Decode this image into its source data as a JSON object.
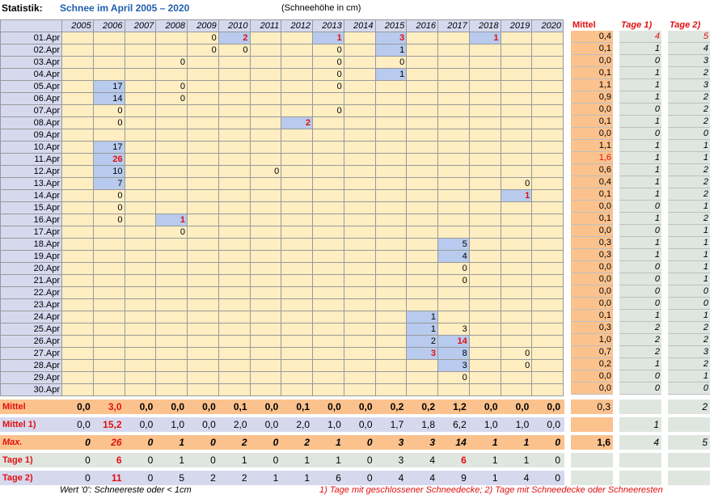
{
  "header": {
    "stat_label": "Statistik:",
    "title": "Schnee im April 2005 – 2020",
    "unit": "(Schneehöhe in cm)"
  },
  "years": [
    "2005",
    "2006",
    "2007",
    "2008",
    "2009",
    "2010",
    "2011",
    "2012",
    "2013",
    "2014",
    "2015",
    "2016",
    "2017",
    "2018",
    "2019",
    "2020"
  ],
  "rows": [
    {
      "d": "01.Apr",
      "v": [
        "",
        "",
        "",
        "",
        "0",
        "2",
        "",
        "",
        "1",
        "",
        "3",
        "",
        "",
        "1",
        "",
        ""
      ],
      "m": "0,4",
      "t1": "4",
      "t2": "5"
    },
    {
      "d": "02.Apr",
      "v": [
        "",
        "",
        "",
        "",
        "0",
        "0",
        "",
        "",
        "0",
        "",
        "1",
        "",
        "",
        "",
        "",
        ""
      ],
      "m": "0,1",
      "t1": "1",
      "t2": "4"
    },
    {
      "d": "03.Apr",
      "v": [
        "",
        "",
        "",
        "0",
        "",
        "",
        "",
        "",
        "0",
        "",
        "0",
        "",
        "",
        "",
        "",
        ""
      ],
      "m": "0,0",
      "t1": "0",
      "t2": "3"
    },
    {
      "d": "04.Apr",
      "v": [
        "",
        "",
        "",
        "",
        "",
        "",
        "",
        "",
        "0",
        "",
        "1",
        "",
        "",
        "",
        "",
        ""
      ],
      "m": "0,1",
      "t1": "1",
      "t2": "2"
    },
    {
      "d": "05.Apr",
      "v": [
        "",
        "17",
        "",
        "0",
        "",
        "",
        "",
        "",
        "0",
        "",
        "",
        "",
        "",
        "",
        "",
        ""
      ],
      "m": "1,1",
      "t1": "1",
      "t2": "3"
    },
    {
      "d": "06.Apr",
      "v": [
        "",
        "14",
        "",
        "0",
        "",
        "",
        "",
        "",
        "",
        "",
        "",
        "",
        "",
        "",
        "",
        ""
      ],
      "m": "0,9",
      "t1": "1",
      "t2": "2"
    },
    {
      "d": "07.Apr",
      "v": [
        "",
        "0",
        "",
        "",
        "",
        "",
        "",
        "",
        "0",
        "",
        "",
        "",
        "",
        "",
        "",
        ""
      ],
      "m": "0,0",
      "t1": "0",
      "t2": "2"
    },
    {
      "d": "08.Apr",
      "v": [
        "",
        "0",
        "",
        "",
        "",
        "",
        "",
        "2",
        "",
        "",
        "",
        "",
        "",
        "",
        "",
        ""
      ],
      "m": "0,1",
      "t1": "1",
      "t2": "2"
    },
    {
      "d": "09.Apr",
      "v": [
        "",
        "",
        "",
        "",
        "",
        "",
        "",
        "",
        "",
        "",
        "",
        "",
        "",
        "",
        "",
        ""
      ],
      "m": "0,0",
      "t1": "0",
      "t2": "0"
    },
    {
      "d": "10.Apr",
      "v": [
        "",
        "17",
        "",
        "",
        "",
        "",
        "",
        "",
        "",
        "",
        "",
        "",
        "",
        "",
        "",
        ""
      ],
      "m": "1,1",
      "t1": "1",
      "t2": "1"
    },
    {
      "d": "11.Apr",
      "v": [
        "",
        "26",
        "",
        "",
        "",
        "",
        "",
        "",
        "",
        "",
        "",
        "",
        "",
        "",
        "",
        ""
      ],
      "m": "1,6",
      "t1": "1",
      "t2": "1"
    },
    {
      "d": "12.Apr",
      "v": [
        "",
        "10",
        "",
        "",
        "",
        "",
        "0",
        "",
        "",
        "",
        "",
        "",
        "",
        "",
        "",
        ""
      ],
      "m": "0,6",
      "t1": "1",
      "t2": "2"
    },
    {
      "d": "13.Apr",
      "v": [
        "",
        "7",
        "",
        "",
        "",
        "",
        "",
        "",
        "",
        "",
        "",
        "",
        "",
        "",
        "0",
        ""
      ],
      "m": "0,4",
      "t1": "1",
      "t2": "2"
    },
    {
      "d": "14.Apr",
      "v": [
        "",
        "0",
        "",
        "",
        "",
        "",
        "",
        "",
        "",
        "",
        "",
        "",
        "",
        "",
        "1",
        ""
      ],
      "m": "0,1",
      "t1": "1",
      "t2": "2"
    },
    {
      "d": "15.Apr",
      "v": [
        "",
        "0",
        "",
        "",
        "",
        "",
        "",
        "",
        "",
        "",
        "",
        "",
        "",
        "",
        "",
        ""
      ],
      "m": "0,0",
      "t1": "0",
      "t2": "1"
    },
    {
      "d": "16.Apr",
      "v": [
        "",
        "0",
        "",
        "1",
        "",
        "",
        "",
        "",
        "",
        "",
        "",
        "",
        "",
        "",
        "",
        ""
      ],
      "m": "0,1",
      "t1": "1",
      "t2": "2"
    },
    {
      "d": "17.Apr",
      "v": [
        "",
        "",
        "",
        "0",
        "",
        "",
        "",
        "",
        "",
        "",
        "",
        "",
        "",
        "",
        "",
        ""
      ],
      "m": "0,0",
      "t1": "0",
      "t2": "1"
    },
    {
      "d": "18.Apr",
      "v": [
        "",
        "",
        "",
        "",
        "",
        "",
        "",
        "",
        "",
        "",
        "",
        "",
        "5",
        "",
        "",
        ""
      ],
      "m": "0,3",
      "t1": "1",
      "t2": "1"
    },
    {
      "d": "19.Apr",
      "v": [
        "",
        "",
        "",
        "",
        "",
        "",
        "",
        "",
        "",
        "",
        "",
        "",
        "4",
        "",
        "",
        ""
      ],
      "m": "0,3",
      "t1": "1",
      "t2": "1"
    },
    {
      "d": "20.Apr",
      "v": [
        "",
        "",
        "",
        "",
        "",
        "",
        "",
        "",
        "",
        "",
        "",
        "",
        "0",
        "",
        "",
        ""
      ],
      "m": "0,0",
      "t1": "0",
      "t2": "1"
    },
    {
      "d": "21.Apr",
      "v": [
        "",
        "",
        "",
        "",
        "",
        "",
        "",
        "",
        "",
        "",
        "",
        "",
        "0",
        "",
        "",
        ""
      ],
      "m": "0,0",
      "t1": "0",
      "t2": "1"
    },
    {
      "d": "22.Apr",
      "v": [
        "",
        "",
        "",
        "",
        "",
        "",
        "",
        "",
        "",
        "",
        "",
        "",
        "",
        "",
        "",
        ""
      ],
      "m": "0,0",
      "t1": "0",
      "t2": "0"
    },
    {
      "d": "23.Apr",
      "v": [
        "",
        "",
        "",
        "",
        "",
        "",
        "",
        "",
        "",
        "",
        "",
        "",
        "",
        "",
        "",
        ""
      ],
      "m": "0,0",
      "t1": "0",
      "t2": "0"
    },
    {
      "d": "24.Apr",
      "v": [
        "",
        "",
        "",
        "",
        "",
        "",
        "",
        "",
        "",
        "",
        "",
        "1",
        "",
        "",
        "",
        ""
      ],
      "m": "0,1",
      "t1": "1",
      "t2": "1"
    },
    {
      "d": "25.Apr",
      "v": [
        "",
        "",
        "",
        "",
        "",
        "",
        "",
        "",
        "",
        "",
        "",
        "1",
        "3",
        "",
        "",
        ""
      ],
      "m": "0,3",
      "t1": "2",
      "t2": "2"
    },
    {
      "d": "26.Apr",
      "v": [
        "",
        "",
        "",
        "",
        "",
        "",
        "",
        "",
        "",
        "",
        "",
        "2",
        "14",
        "",
        "",
        ""
      ],
      "m": "1,0",
      "t1": "2",
      "t2": "2"
    },
    {
      "d": "27.Apr",
      "v": [
        "",
        "",
        "",
        "",
        "",
        "",
        "",
        "",
        "",
        "",
        "",
        "3",
        "8",
        "",
        "0",
        ""
      ],
      "m": "0,7",
      "t1": "2",
      "t2": "3"
    },
    {
      "d": "28.Apr",
      "v": [
        "",
        "",
        "",
        "",
        "",
        "",
        "",
        "",
        "",
        "",
        "",
        "",
        "3",
        "",
        "0",
        ""
      ],
      "m": "0,2",
      "t1": "1",
      "t2": "2"
    },
    {
      "d": "29.Apr",
      "v": [
        "",
        "",
        "",
        "",
        "",
        "",
        "",
        "",
        "",
        "",
        "",
        "",
        "0",
        "",
        "",
        ""
      ],
      "m": "0,0",
      "t1": "0",
      "t2": "1"
    },
    {
      "d": "30.Apr",
      "v": [
        "",
        "",
        "",
        "",
        "",
        "",
        "",
        "",
        "",
        "",
        "",
        "",
        "",
        "",
        "",
        ""
      ],
      "m": "0,0",
      "t1": "0",
      "t2": "0"
    }
  ],
  "side_headers": {
    "mittel": "Mittel",
    "tage1": "Tage 1)",
    "tage2": "Tage 2)"
  },
  "summary": [
    {
      "label": "Mittel",
      "vals": [
        "0,0",
        "3,0",
        "0,0",
        "0,0",
        "0,0",
        "0,1",
        "0,0",
        "0,1",
        "0,0",
        "0,0",
        "0,2",
        "0,2",
        "1,2",
        "0,0",
        "0,0",
        "0,0"
      ],
      "m": "0,3",
      "t1": "",
      "t2": "2"
    },
    {
      "label": "Mittel 1)",
      "vals": [
        "0,0",
        "15,2",
        "0,0",
        "1,0",
        "0,0",
        "2,0",
        "0,0",
        "2,0",
        "1,0",
        "0,0",
        "1,7",
        "1,8",
        "6,2",
        "1,0",
        "1,0",
        "0,0"
      ],
      "m": "",
      "t1": "1",
      "t2": ""
    },
    {
      "label": "Max.",
      "vals": [
        "0",
        "26",
        "0",
        "1",
        "0",
        "2",
        "0",
        "2",
        "1",
        "0",
        "3",
        "3",
        "14",
        "1",
        "1",
        "0"
      ],
      "m": "1,6",
      "t1": "4",
      "t2": "5"
    },
    {
      "label": "Tage 1)",
      "vals": [
        "0",
        "6",
        "0",
        "1",
        "0",
        "1",
        "0",
        "1",
        "1",
        "0",
        "3",
        "4",
        "6",
        "1",
        "1",
        "0"
      ],
      "m": "",
      "t1": "",
      "t2": ""
    },
    {
      "label": "Tage 2)",
      "vals": [
        "0",
        "11",
        "0",
        "5",
        "2",
        "2",
        "1",
        "1",
        "6",
        "0",
        "4",
        "4",
        "9",
        "1",
        "4",
        "0"
      ],
      "m": "",
      "t1": "",
      "t2": ""
    }
  ],
  "footer": {
    "note": "Wert '0': Schneereste oder < 1cm",
    "legend": "1) Tage mit geschlossener Schneedecke;  2) Tage mit Schneedecke oder Schneeresten"
  },
  "colors": {
    "cell": "#ffeec2",
    "highlight": "#b8cbee",
    "header": "#d6d9ee",
    "mittel": "#fbc28e",
    "tage": "#dfe6df",
    "red": "#e01010",
    "title": "#1f5fb0"
  }
}
